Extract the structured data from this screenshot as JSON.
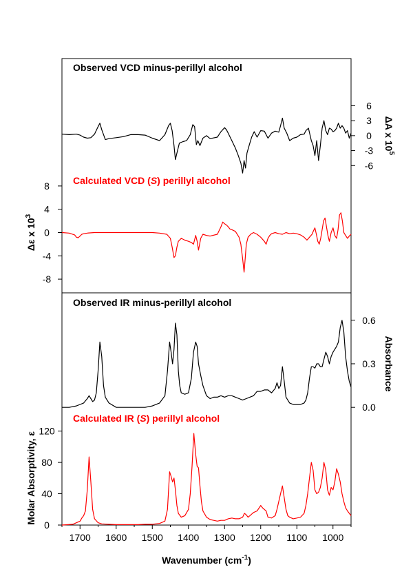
{
  "chart_data": {
    "type": "line",
    "xlabel": "Wavenumber (cm-1)",
    "xlabel_main": "Wavenumber (cm",
    "xlabel_sup": "-1",
    "xlabel_close": ")",
    "x_reversed": true,
    "xlim": [
      1750,
      950
    ],
    "xticks": [
      1700,
      1600,
      1500,
      1400,
      1300,
      1200,
      1100,
      1000
    ],
    "grid": false,
    "panels": [
      {
        "title": "Observed VCD minus-perillyl alcohol",
        "title_color": "#000000",
        "axis": "right",
        "ylabel": "ΔA x 10^5",
        "ylabel_main": "ΔA x 10",
        "ylabel_sup": "5",
        "yticks": [
          6,
          3,
          0,
          -3,
          -6
        ],
        "ylim": [
          -9,
          12
        ],
        "series": [
          {
            "color": "#000000",
            "x": [
              1750,
              1730,
              1710,
              1700,
              1690,
              1680,
              1670,
              1660,
              1650,
              1645,
              1640,
              1630,
              1620,
              1600,
              1580,
              1560,
              1540,
              1520,
              1500,
              1480,
              1465,
              1455,
              1450,
              1445,
              1440,
              1436,
              1432,
              1425,
              1415,
              1405,
              1395,
              1388,
              1383,
              1378,
              1374,
              1368,
              1360,
              1350,
              1340,
              1320,
              1310,
              1300,
              1295,
              1290,
              1280,
              1270,
              1262,
              1255,
              1250,
              1246,
              1242,
              1238,
              1232,
              1225,
              1218,
              1210,
              1200,
              1190,
              1180,
              1170,
              1160,
              1150,
              1145,
              1140,
              1135,
              1128,
              1120,
              1110,
              1100,
              1090,
              1080,
              1075,
              1068,
              1060,
              1055,
              1050,
              1045,
              1040,
              1035,
              1030,
              1025,
              1020,
              1015,
              1010,
              1005,
              1000,
              995,
              990,
              985,
              980,
              975,
              970,
              965,
              960,
              955,
              950
            ],
            "y": [
              0.3,
              0.2,
              0.3,
              0.1,
              -0.3,
              -0.5,
              -0.4,
              0.3,
              1.8,
              2.5,
              1.2,
              -0.8,
              -0.6,
              -0.4,
              -0.2,
              0.2,
              0.2,
              0.1,
              -0.5,
              -1.0,
              0.2,
              2.0,
              2.5,
              1.0,
              -2.0,
              -4.8,
              -3.5,
              -1.5,
              -1.2,
              -1.0,
              0.2,
              2.2,
              1.8,
              -1.8,
              -1.0,
              -2.0,
              -0.5,
              0.0,
              -0.6,
              -0.3,
              0.8,
              1.6,
              1.2,
              0.5,
              -1.0,
              -2.5,
              -4.0,
              -5.5,
              -7.5,
              -5.0,
              -6.5,
              -3.5,
              -2.0,
              -0.3,
              0.8,
              -0.3,
              1.0,
              0.9,
              -0.5,
              0.5,
              0.9,
              0.7,
              2.0,
              3.5,
              1.5,
              0.5,
              -1.0,
              -0.5,
              -0.3,
              0.2,
              0.3,
              1.0,
              1.5,
              -1.0,
              -2.0,
              -4.0,
              -1.0,
              -5.0,
              -2.0,
              1.5,
              3.0,
              1.0,
              0.2,
              1.5,
              1.3,
              0.8,
              1.0,
              1.5,
              2.5,
              1.5,
              2.0,
              1.5,
              0.5,
              1.0,
              -0.5,
              0.5
            ]
          }
        ]
      },
      {
        "title_parts": [
          "Calculated VCD (",
          "S",
          ") perillyl alcohol"
        ],
        "title_color": "#ff0000",
        "axis": "left",
        "ylabel": "Δε x 10^3",
        "ylabel_main": "Δε x 10",
        "ylabel_sup": "3",
        "yticks": [
          8,
          4,
          0,
          -4,
          -8
        ],
        "ylim": [
          -10,
          10
        ],
        "series": [
          {
            "color": "#ff0000",
            "x": [
              1750,
              1730,
              1715,
              1710,
              1705,
              1700,
              1695,
              1690,
              1680,
              1660,
              1640,
              1620,
              1600,
              1580,
              1560,
              1540,
              1520,
              1500,
              1480,
              1460,
              1450,
              1445,
              1440,
              1436,
              1432,
              1428,
              1420,
              1410,
              1400,
              1392,
              1386,
              1380,
              1376,
              1372,
              1366,
              1360,
              1350,
              1340,
              1320,
              1310,
              1305,
              1300,
              1295,
              1290,
              1285,
              1280,
              1270,
              1260,
              1255,
              1250,
              1246,
              1243,
              1240,
              1235,
              1228,
              1220,
              1210,
              1200,
              1190,
              1185,
              1180,
              1175,
              1170,
              1160,
              1150,
              1140,
              1130,
              1120,
              1110,
              1100,
              1090,
              1080,
              1072,
              1065,
              1058,
              1054,
              1050,
              1046,
              1042,
              1038,
              1034,
              1030,
              1026,
              1022,
              1018,
              1014,
              1010,
              1005,
              1000,
              995,
              990,
              986,
              982,
              978,
              974,
              970,
              965,
              960,
              955,
              950
            ],
            "y": [
              0.0,
              -0.1,
              -0.4,
              -0.8,
              -0.9,
              -0.6,
              -0.3,
              -0.2,
              -0.1,
              0.0,
              0.0,
              0.0,
              0.0,
              0.0,
              0.0,
              0.0,
              0.0,
              0.0,
              -0.1,
              -0.3,
              -1.0,
              -2.5,
              -4.3,
              -4.0,
              -2.5,
              -1.5,
              -1.0,
              -1.3,
              -1.5,
              -1.7,
              -2.0,
              -0.5,
              -1.5,
              -3.0,
              -1.0,
              -0.3,
              -0.5,
              -0.6,
              -0.3,
              1.0,
              1.8,
              1.5,
              1.3,
              1.0,
              0.6,
              0.5,
              0.2,
              -0.8,
              -2.0,
              -4.5,
              -6.8,
              -4.5,
              -2.0,
              -0.8,
              -0.3,
              0.0,
              -0.3,
              -0.8,
              -1.5,
              -2.0,
              -1.0,
              -0.5,
              -0.2,
              0.0,
              -0.2,
              -0.3,
              0.0,
              -0.2,
              -0.1,
              -0.2,
              -0.4,
              -0.8,
              -1.3,
              -0.8,
              -0.3,
              0.3,
              0.8,
              -0.3,
              -1.5,
              -2.0,
              -1.0,
              0.5,
              2.0,
              2.5,
              1.0,
              -0.5,
              -1.5,
              0.0,
              0.8,
              -0.5,
              -1.0,
              0.5,
              3.0,
              3.4,
              2.0,
              0.0,
              -0.5,
              -1.0,
              -0.6,
              -0.3
            ]
          }
        ]
      },
      {
        "title": "Observed IR minus-perillyl alcohol",
        "title_color": "#000000",
        "axis": "right",
        "ylabel": "Absorbance",
        "yticks": [
          0.6,
          0.3,
          0.0
        ],
        "ylim": [
          -0.17,
          0.67
        ],
        "series": [
          {
            "color": "#000000",
            "x": [
              1750,
              1730,
              1710,
              1700,
              1690,
              1680,
              1675,
              1670,
              1665,
              1660,
              1655,
              1650,
              1645,
              1640,
              1635,
              1630,
              1620,
              1600,
              1580,
              1560,
              1540,
              1520,
              1500,
              1480,
              1465,
              1458,
              1452,
              1448,
              1444,
              1440,
              1436,
              1432,
              1428,
              1424,
              1420,
              1410,
              1400,
              1392,
              1386,
              1380,
              1376,
              1372,
              1366,
              1360,
              1350,
              1340,
              1330,
              1320,
              1310,
              1300,
              1290,
              1280,
              1270,
              1260,
              1250,
              1240,
              1230,
              1220,
              1210,
              1200,
              1190,
              1180,
              1170,
              1160,
              1155,
              1150,
              1145,
              1140,
              1135,
              1130,
              1120,
              1110,
              1100,
              1090,
              1080,
              1075,
              1070,
              1065,
              1060,
              1055,
              1050,
              1045,
              1040,
              1035,
              1030,
              1025,
              1020,
              1015,
              1010,
              1005,
              1000,
              995,
              990,
              985,
              980,
              975,
              970,
              965,
              960,
              955,
              950
            ],
            "y": [
              0.0,
              0.0,
              0.01,
              0.02,
              0.03,
              0.06,
              0.08,
              0.06,
              0.04,
              0.05,
              0.1,
              0.25,
              0.45,
              0.35,
              0.15,
              0.07,
              0.03,
              0.0,
              0.0,
              0.0,
              0.0,
              0.0,
              0.01,
              0.03,
              0.08,
              0.25,
              0.45,
              0.38,
              0.3,
              0.4,
              0.58,
              0.5,
              0.25,
              0.15,
              0.1,
              0.09,
              0.1,
              0.2,
              0.38,
              0.45,
              0.42,
              0.3,
              0.22,
              0.15,
              0.08,
              0.06,
              0.07,
              0.07,
              0.08,
              0.07,
              0.08,
              0.08,
              0.07,
              0.06,
              0.05,
              0.06,
              0.07,
              0.08,
              0.11,
              0.11,
              0.12,
              0.12,
              0.1,
              0.13,
              0.17,
              0.13,
              0.15,
              0.28,
              0.18,
              0.07,
              0.03,
              0.02,
              0.02,
              0.02,
              0.03,
              0.05,
              0.1,
              0.2,
              0.28,
              0.28,
              0.27,
              0.3,
              0.3,
              0.28,
              0.28,
              0.33,
              0.38,
              0.35,
              0.3,
              0.35,
              0.38,
              0.4,
              0.42,
              0.45,
              0.55,
              0.6,
              0.52,
              0.35,
              0.25,
              0.18,
              0.14
            ]
          }
        ]
      },
      {
        "title_parts": [
          "Calculated IR (",
          "S",
          ") perillyl alcohol"
        ],
        "title_color": "#ff0000",
        "axis": "left",
        "ylabel": "Molar Absorptivity, ε",
        "yticks": [
          120,
          80,
          40,
          0
        ],
        "ylim": [
          0,
          132
        ],
        "series": [
          {
            "color": "#ff0000",
            "x": [
              1750,
              1720,
              1700,
              1695,
              1690,
              1685,
              1680,
              1675,
              1670,
              1665,
              1660,
              1650,
              1640,
              1620,
              1600,
              1580,
              1560,
              1540,
              1520,
              1500,
              1480,
              1465,
              1458,
              1452,
              1448,
              1444,
              1440,
              1436,
              1432,
              1428,
              1420,
              1410,
              1400,
              1395,
              1390,
              1385,
              1380,
              1376,
              1372,
              1368,
              1364,
              1360,
              1350,
              1340,
              1330,
              1320,
              1310,
              1300,
              1290,
              1280,
              1270,
              1260,
              1250,
              1245,
              1240,
              1235,
              1230,
              1220,
              1210,
              1200,
              1195,
              1190,
              1185,
              1180,
              1170,
              1160,
              1155,
              1150,
              1145,
              1140,
              1135,
              1130,
              1125,
              1120,
              1110,
              1100,
              1090,
              1080,
              1075,
              1070,
              1065,
              1060,
              1055,
              1050,
              1045,
              1040,
              1035,
              1030,
              1025,
              1020,
              1015,
              1010,
              1005,
              1000,
              995,
              990,
              985,
              980,
              975,
              970,
              965,
              960,
              955,
              950
            ],
            "y": [
              0,
              1,
              5,
              9,
              12,
              18,
              45,
              87,
              55,
              20,
              8,
              3,
              1.5,
              1,
              0.5,
              0.5,
              0.5,
              0.5,
              1,
              1,
              2,
              5,
              20,
              68,
              62,
              55,
              60,
              45,
              25,
              15,
              10,
              12,
              20,
              40,
              75,
              117,
              90,
              75,
              73,
              50,
              30,
              18,
              10,
              7,
              6,
              5,
              6,
              6,
              8,
              9,
              8,
              8,
              10,
              15,
              13,
              10,
              12,
              16,
              18,
              25,
              22,
              20,
              18,
              10,
              9,
              12,
              20,
              30,
              40,
              50,
              35,
              20,
              12,
              10,
              8,
              9,
              10,
              15,
              25,
              40,
              60,
              80,
              70,
              45,
              40,
              42,
              48,
              60,
              80,
              70,
              45,
              38,
              48,
              45,
              55,
              72,
              65,
              55,
              40,
              30,
              22,
              18,
              15,
              12
            ]
          }
        ]
      }
    ]
  }
}
